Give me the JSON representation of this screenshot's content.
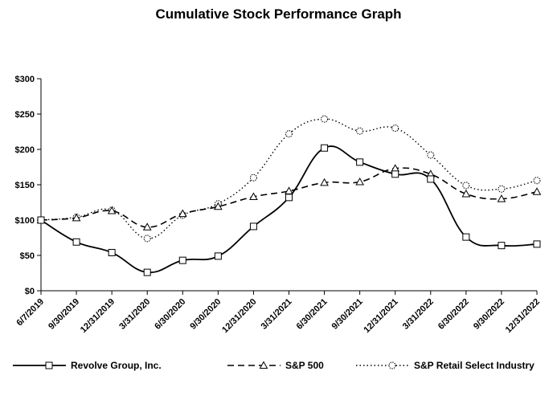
{
  "chart_data": {
    "type": "line",
    "title": "Cumulative Stock Performance Graph",
    "xlabel": "",
    "ylabel": "",
    "ylim": [
      0,
      300
    ],
    "y_ticks": [
      "$0",
      "$50",
      "$100",
      "$150",
      "$200",
      "$250",
      "$300"
    ],
    "y_tick_values": [
      0,
      50,
      100,
      150,
      200,
      250,
      300
    ],
    "categories": [
      "6/7/2019",
      "9/30/2019",
      "12/31/2019",
      "3/31/2020",
      "6/30/2020",
      "9/30/2020",
      "12/31/2020",
      "3/31/2021",
      "6/30/2021",
      "9/30/2021",
      "12/31/2021",
      "3/31/2022",
      "6/30/2022",
      "9/30/2022",
      "12/31/2022"
    ],
    "series": [
      {
        "name": "Revolve Group, Inc.",
        "style": "solid",
        "marker": "square",
        "color": "#000000",
        "values": [
          100,
          69,
          54,
          26,
          43,
          49,
          91,
          132,
          202,
          182,
          165,
          158,
          76,
          64,
          66
        ]
      },
      {
        "name": "S&P 500",
        "style": "dashed",
        "marker": "triangle",
        "color": "#000000",
        "values": [
          100,
          103,
          113,
          90,
          109,
          119,
          133,
          141,
          153,
          154,
          173,
          165,
          137,
          130,
          140
        ]
      },
      {
        "name": "S&P Retail Select Industry",
        "style": "dotted",
        "marker": "circle",
        "color": "#000000",
        "values": [
          100,
          104,
          114,
          74,
          107,
          123,
          160,
          222,
          243,
          226,
          230,
          192,
          149,
          144,
          156
        ]
      }
    ],
    "legend_position": "bottom"
  }
}
